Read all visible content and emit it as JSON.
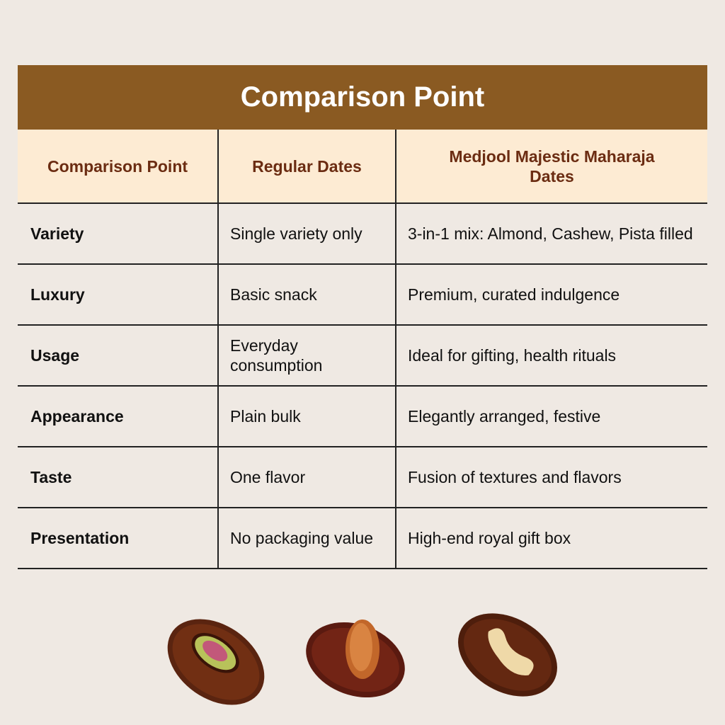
{
  "title": "Comparison Point",
  "table": {
    "header": [
      "Comparison Point",
      "Regular Dates",
      "Medjool Majestic Maharaja Dates"
    ],
    "rows": [
      [
        "Variety",
        "Single variety only",
        "3-in-1 mix: Almond, Cashew, Pista filled"
      ],
      [
        "Luxury",
        "Basic snack",
        "Premium, curated indulgence"
      ],
      [
        "Usage",
        "Everyday consumption",
        "Ideal for gifting, health rituals"
      ],
      [
        "Appearance",
        "Plain bulk",
        "Elegantly arranged, festive"
      ],
      [
        "Taste",
        "One flavor",
        "Fusion of textures and flavors"
      ],
      [
        "Presentation",
        "No packaging value",
        "High-end royal gift box"
      ]
    ]
  }
}
